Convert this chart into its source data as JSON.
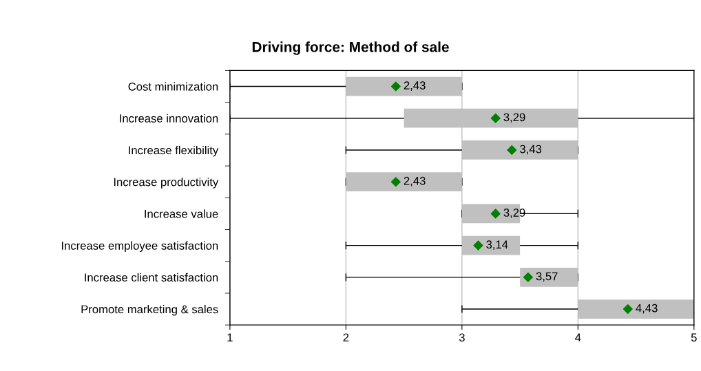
{
  "chart_data": {
    "type": "bar",
    "orientation": "horizontal",
    "title": "Driving force: Method of sale",
    "categories": [
      "Cost minimization",
      "Increase innovation",
      "Increase flexibility",
      "Increase productivity",
      "Increase value",
      "Increase employee satisfaction",
      "Increase client satisfaction",
      "Promote marketing & sales"
    ],
    "series": [
      {
        "color": "#c0c0c0",
        "base": [
          2,
          2.5,
          3,
          2,
          3,
          3,
          3.5,
          4
        ],
        "values": [
          1,
          1.5,
          1,
          1,
          0.5,
          0.5,
          0.5,
          1
        ],
        "errors": [
          [
            1,
            3
          ],
          [
            1,
            5
          ],
          [
            2,
            4
          ],
          [
            2,
            3
          ],
          [
            3,
            4
          ],
          [
            2,
            4
          ],
          [
            2,
            4
          ],
          [
            3,
            5
          ]
        ]
      },
      {
        "type": "scatter",
        "color": "#008000",
        "marker": "diamond",
        "values": [
          2.43,
          3.29,
          3.43,
          2.43,
          3.29,
          3.14,
          3.57,
          4.43
        ],
        "value_labels": [
          "2,43",
          "3,29",
          "3,43",
          "2,43",
          "3,29",
          "3,14",
          "3,57",
          "4,43"
        ]
      }
    ],
    "xlim": [
      1,
      5
    ],
    "xticks": [
      1,
      2,
      3,
      4,
      5
    ],
    "grid": "x",
    "legend": false
  }
}
